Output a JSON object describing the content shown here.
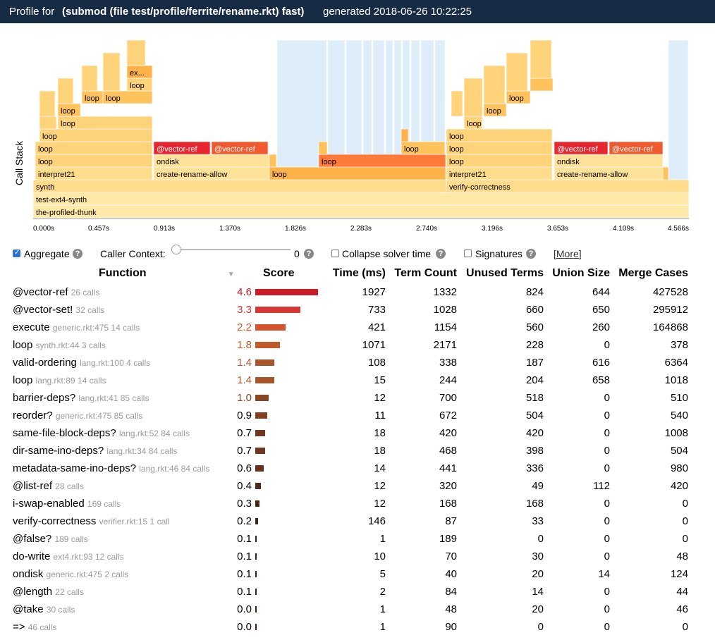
{
  "title": {
    "prefix": "Profile for",
    "program": "(submod (file test/profile/ferrite/rename.rkt) fast)",
    "generated": "generated 2018-06-26 10:22:25"
  },
  "flamegraph": {
    "axis_label": "Call Stack",
    "ticks": [
      "0.000s",
      "0.457s",
      "0.913s",
      "1.370s",
      "1.826s",
      "2.283s",
      "2.740s",
      "3.196s",
      "3.653s",
      "4.109s",
      "4.566s"
    ],
    "frame_labels": {
      "synth": "synth",
      "test_ext4_synth": "test-ext4-synth",
      "profiled_thunk": "the-profiled-thunk",
      "verify_correctness": "verify-correctness",
      "interpret21": "interpret21",
      "loop": "loop",
      "ondisk": "ondisk",
      "create_rename_allow": "create-rename-allow",
      "vector_ref": "@vector-ref",
      "ex": "ex..."
    }
  },
  "controls": {
    "aggregate": {
      "label": "Aggregate",
      "checked": true
    },
    "caller_context": {
      "label": "Caller Context:",
      "value": "0"
    },
    "collapse_solver": {
      "label": "Collapse solver time",
      "checked": false
    },
    "signatures": {
      "label": "Signatures",
      "checked": false
    },
    "more": "[More]",
    "help_glyph": "?"
  },
  "table": {
    "headers": {
      "function": "Function",
      "sort_indicator": "▾",
      "score": "Score",
      "time": "Time (ms)",
      "term_count": "Term Count",
      "unused_terms": "Unused Terms",
      "union_size": "Union Size",
      "merge_cases": "Merge Cases"
    },
    "rows": [
      {
        "name": "@vector-ref",
        "meta": "26 calls",
        "score": "4.6",
        "time": "1927",
        "terms": "1332",
        "unused": "824",
        "union": "644",
        "merge": "427528",
        "color": "#cc1b26"
      },
      {
        "name": "@vector-set!",
        "meta": "32 calls",
        "score": "3.3",
        "time": "733",
        "terms": "1028",
        "unused": "660",
        "union": "650",
        "merge": "295912",
        "color": "#d63634"
      },
      {
        "name": "execute",
        "meta": "generic.rkt:475  14 calls",
        "score": "2.2",
        "time": "421",
        "terms": "1154",
        "unused": "560",
        "union": "260",
        "merge": "164868",
        "color": "#d3532d"
      },
      {
        "name": "loop",
        "meta": "synth.rkt:44  3 calls",
        "score": "1.8",
        "time": "1071",
        "terms": "2171",
        "unused": "228",
        "union": "0",
        "merge": "378",
        "color": "#c15a2a"
      },
      {
        "name": "valid-ordering",
        "meta": "lang.rkt:100  4 calls",
        "score": "1.4",
        "time": "108",
        "terms": "338",
        "unused": "187",
        "union": "616",
        "merge": "6364",
        "color": "#a9552a"
      },
      {
        "name": "loop",
        "meta": "lang.rkt:89  14 calls",
        "score": "1.4",
        "time": "15",
        "terms": "244",
        "unused": "204",
        "union": "658",
        "merge": "1018",
        "color": "#a9552a"
      },
      {
        "name": "barrier-deps?",
        "meta": "lang.rkt:41  85 calls",
        "score": "1.0",
        "time": "12",
        "terms": "700",
        "unused": "518",
        "union": "0",
        "merge": "510",
        "color": "#8a4524"
      },
      {
        "name": "reorder?",
        "meta": "generic.rkt:475  85 calls",
        "score": "0.9",
        "time": "11",
        "terms": "672",
        "unused": "504",
        "union": "0",
        "merge": "540",
        "color": "#824123"
      },
      {
        "name": "same-file-block-deps?",
        "meta": "lang.rkt:52  84 calls",
        "score": "0.7",
        "time": "18",
        "terms": "420",
        "unused": "420",
        "union": "0",
        "merge": "1008",
        "color": "#6e3820"
      },
      {
        "name": "dir-same-ino-deps?",
        "meta": "lang.rkt:34  84 calls",
        "score": "0.7",
        "time": "18",
        "terms": "468",
        "unused": "398",
        "union": "0",
        "merge": "504",
        "color": "#6e3820"
      },
      {
        "name": "metadata-same-ino-deps?",
        "meta": "lang.rkt:46  84 calls",
        "score": "0.6",
        "time": "14",
        "terms": "441",
        "unused": "336",
        "union": "0",
        "merge": "980",
        "color": "#65321e"
      },
      {
        "name": "@list-ref",
        "meta": "28 calls",
        "score": "0.4",
        "time": "12",
        "terms": "320",
        "unused": "49",
        "union": "112",
        "merge": "420",
        "color": "#4d2a1a"
      },
      {
        "name": "i-swap-enabled",
        "meta": "169 calls",
        "score": "0.3",
        "time": "12",
        "terms": "168",
        "unused": "168",
        "union": "0",
        "merge": "0",
        "color": "#4a2818"
      },
      {
        "name": "verify-correctness",
        "meta": "verifier.rkt:15  1 call",
        "score": "0.2",
        "time": "146",
        "terms": "87",
        "unused": "33",
        "union": "0",
        "merge": "0",
        "color": "#3d2416"
      },
      {
        "name": "@false?",
        "meta": "189 calls",
        "score": "0.1",
        "time": "1",
        "terms": "189",
        "unused": "0",
        "union": "0",
        "merge": "0",
        "color": "#3a2214"
      },
      {
        "name": "do-write",
        "meta": "ext4.rkt:93  12 calls",
        "score": "0.1",
        "time": "10",
        "terms": "70",
        "unused": "30",
        "union": "0",
        "merge": "48",
        "color": "#3a2214"
      },
      {
        "name": "ondisk",
        "meta": "generic.rkt:475  2 calls",
        "score": "0.1",
        "time": "5",
        "terms": "40",
        "unused": "20",
        "union": "14",
        "merge": "124",
        "color": "#3a2214"
      },
      {
        "name": "@length",
        "meta": "22 calls",
        "score": "0.1",
        "time": "2",
        "terms": "84",
        "unused": "14",
        "union": "0",
        "merge": "44",
        "color": "#3a2214"
      },
      {
        "name": "@take",
        "meta": "30 calls",
        "score": "0.0",
        "time": "1",
        "terms": "48",
        "unused": "20",
        "union": "0",
        "merge": "46",
        "color": "#3a2214"
      },
      {
        "name": "=>",
        "meta": "46 calls",
        "score": "0.0",
        "time": "1",
        "terms": "90",
        "unused": "0",
        "union": "0",
        "merge": "0",
        "color": "#3a2214"
      }
    ]
  }
}
